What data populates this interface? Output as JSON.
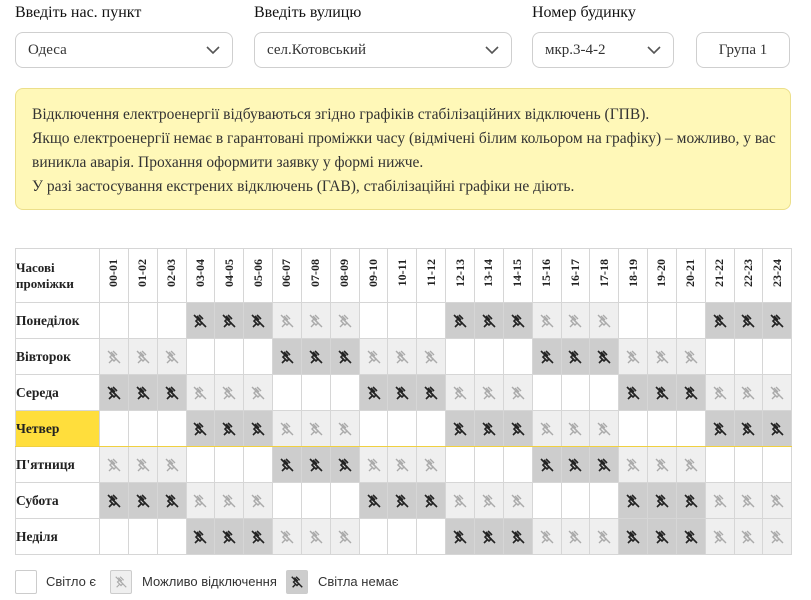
{
  "filters": {
    "city_label": "Введіть нас. пункт",
    "city_value": "Одеса",
    "street_label": "Введіть вулицю",
    "street_value": "сел.Котовський",
    "house_label": "Номер будинку",
    "house_value": "мкр.3-4-2",
    "group_label": "Група 1"
  },
  "notice": {
    "lines": [
      "Відключення електроенергії відбуваються згідно графіків стабілізаційних відключень (ГПВ).",
      "Якщо електроенергії немає в гарантовані проміжки часу (відмічені білим кольором на графіку) – можливо, у вас",
      "виникла аварія. Прохання оформити заявку у формі нижче.",
      "У разі застосування екстрених відключень (ГАВ), стабілізаційні графіки не діють."
    ]
  },
  "schedule": {
    "header": "Часові проміжки",
    "hours": [
      "00-01",
      "01-02",
      "02-03",
      "03-04",
      "04-05",
      "05-06",
      "06-07",
      "07-08",
      "08-09",
      "09-10",
      "10-11",
      "11-12",
      "12-13",
      "13-14",
      "14-15",
      "15-16",
      "16-17",
      "17-18",
      "18-19",
      "19-20",
      "20-21",
      "21-22",
      "22-23",
      "23-24"
    ],
    "legend_states": {
      "0": "light-on",
      "1": "maybe-off",
      "2": "light-off"
    },
    "today": "Четвер",
    "days": [
      {
        "name": "Понеділок",
        "states": [
          0,
          0,
          0,
          2,
          2,
          2,
          1,
          1,
          1,
          0,
          0,
          0,
          2,
          2,
          2,
          1,
          1,
          1,
          0,
          0,
          0,
          2,
          2,
          2
        ]
      },
      {
        "name": "Вівторок",
        "states": [
          1,
          1,
          1,
          0,
          0,
          0,
          2,
          2,
          2,
          1,
          1,
          1,
          0,
          0,
          0,
          2,
          2,
          2,
          1,
          1,
          1,
          0,
          0,
          0
        ]
      },
      {
        "name": "Середа",
        "states": [
          2,
          2,
          2,
          1,
          1,
          1,
          0,
          0,
          0,
          2,
          2,
          2,
          1,
          1,
          1,
          0,
          0,
          0,
          2,
          2,
          2,
          1,
          1,
          1
        ]
      },
      {
        "name": "Четвер",
        "states": [
          0,
          0,
          0,
          2,
          2,
          2,
          1,
          1,
          1,
          0,
          0,
          0,
          2,
          2,
          2,
          1,
          1,
          1,
          0,
          0,
          0,
          2,
          2,
          2
        ]
      },
      {
        "name": "П'ятниця",
        "states": [
          1,
          1,
          1,
          0,
          0,
          0,
          2,
          2,
          2,
          1,
          1,
          1,
          0,
          0,
          0,
          2,
          2,
          2,
          1,
          1,
          1,
          0,
          0,
          0
        ]
      },
      {
        "name": "Субота",
        "states": [
          2,
          2,
          2,
          1,
          1,
          1,
          0,
          0,
          0,
          2,
          2,
          2,
          1,
          1,
          1,
          0,
          0,
          0,
          2,
          2,
          2,
          1,
          1,
          1
        ]
      },
      {
        "name": "Неділя",
        "states": [
          0,
          0,
          0,
          2,
          2,
          2,
          1,
          1,
          1,
          0,
          0,
          0,
          2,
          2,
          2,
          1,
          1,
          1,
          2,
          2,
          2,
          1,
          1,
          1
        ]
      }
    ]
  },
  "legend": {
    "on_label": "Світло є",
    "maybe_label": "Можливо відключення",
    "off_label": "Світла немає"
  },
  "colors": {
    "notice_bg": "#fff8b8",
    "today_bg": "#ffde3c",
    "maybe_bg": "#efefef",
    "off_bg": "#cdcdcd"
  },
  "icons": {
    "maybe": "plug-off-icon-light",
    "off": "plug-off-icon-dark",
    "dropdown": "chevron-down-icon"
  }
}
